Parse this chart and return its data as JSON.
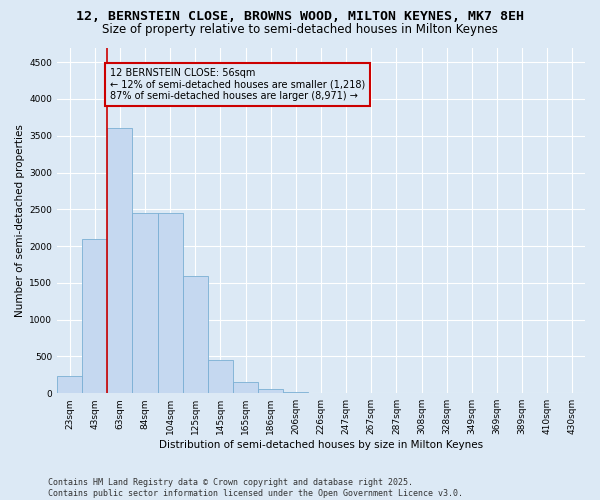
{
  "title_line1": "12, BERNSTEIN CLOSE, BROWNS WOOD, MILTON KEYNES, MK7 8EH",
  "title_line2": "Size of property relative to semi-detached houses in Milton Keynes",
  "xlabel": "Distribution of semi-detached houses by size in Milton Keynes",
  "ylabel": "Number of semi-detached properties",
  "annotation_title": "12 BERNSTEIN CLOSE: 56sqm",
  "annotation_line2": "← 12% of semi-detached houses are smaller (1,218)",
  "annotation_line3": "87% of semi-detached houses are larger (8,971) →",
  "footnote_line1": "Contains HM Land Registry data © Crown copyright and database right 2025.",
  "footnote_line2": "Contains public sector information licensed under the Open Government Licence v3.0.",
  "categories": [
    "23sqm",
    "43sqm",
    "63sqm",
    "84sqm",
    "104sqm",
    "125sqm",
    "145sqm",
    "165sqm",
    "186sqm",
    "206sqm",
    "226sqm",
    "247sqm",
    "267sqm",
    "287sqm",
    "308sqm",
    "328sqm",
    "349sqm",
    "369sqm",
    "389sqm",
    "410sqm",
    "430sqm"
  ],
  "values": [
    230,
    2100,
    3600,
    2450,
    2450,
    1600,
    450,
    150,
    60,
    20,
    0,
    0,
    0,
    0,
    0,
    0,
    0,
    0,
    0,
    0,
    0
  ],
  "bar_color": "#c5d8f0",
  "bar_edge_color": "#7aafd4",
  "vline_x_index": 1.5,
  "vline_color": "#cc0000",
  "vline_linewidth": 1.2,
  "annotation_box_color": "#cc0000",
  "background_color": "#dce9f5",
  "ylim": [
    0,
    4700
  ],
  "yticks": [
    0,
    500,
    1000,
    1500,
    2000,
    2500,
    3000,
    3500,
    4000,
    4500
  ],
  "grid_color": "#ffffff",
  "title_fontsize": 9.5,
  "subtitle_fontsize": 8.5,
  "axis_label_fontsize": 7.5,
  "tick_fontsize": 6.5,
  "annotation_fontsize": 7,
  "footnote_fontsize": 6
}
